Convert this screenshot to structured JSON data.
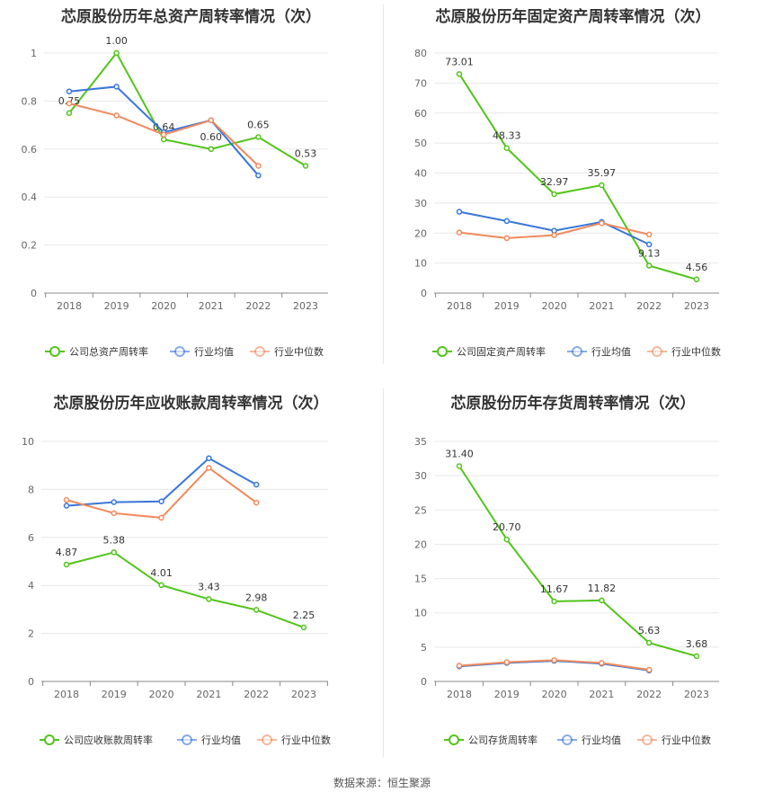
{
  "footer": "数据来源：恒生聚源",
  "chart_data": [
    {
      "type": "line",
      "title": "芯原股份历年总资产周转率情况（次）",
      "x": [
        "2018",
        "2019",
        "2020",
        "2021",
        "2022",
        "2023"
      ],
      "ylim": [
        0,
        1
      ],
      "yticks": [
        "0",
        "0.2",
        "0.4",
        "0.6",
        "0.8",
        "1"
      ],
      "ytick_values": [
        0,
        0.2,
        0.4,
        0.6,
        0.8,
        1
      ],
      "grid": true,
      "legend": "bottom",
      "series": [
        {
          "name": "公司总资产周转率",
          "color": "#52c41a",
          "values": [
            0.75,
            1.0,
            0.64,
            0.6,
            0.65,
            0.53
          ],
          "labels": [
            "0.75",
            "1.00",
            "0.64",
            "0.60",
            "0.65",
            "0.53"
          ]
        },
        {
          "name": "行业均值",
          "color": "#3a76d8",
          "values": [
            0.84,
            0.86,
            0.67,
            0.72,
            0.49,
            null
          ]
        },
        {
          "name": "行业中位数",
          "color": "#f08a5d",
          "values": [
            0.79,
            0.74,
            0.66,
            0.72,
            0.53,
            null
          ]
        }
      ]
    },
    {
      "type": "line",
      "title": "芯原股份历年固定资产周转率情况（次）",
      "x": [
        "2018",
        "2019",
        "2020",
        "2021",
        "2022",
        "2023"
      ],
      "ylim": [
        0,
        80
      ],
      "yticks": [
        "0",
        "10",
        "20",
        "30",
        "40",
        "50",
        "60",
        "70",
        "80"
      ],
      "ytick_values": [
        0,
        10,
        20,
        30,
        40,
        50,
        60,
        70,
        80
      ],
      "grid": true,
      "legend": "bottom",
      "series": [
        {
          "name": "公司固定资产周转率",
          "color": "#52c41a",
          "values": [
            73.01,
            48.33,
            32.97,
            35.97,
            9.13,
            4.56
          ],
          "labels": [
            "73.01",
            "48.33",
            "32.97",
            "35.97",
            "9.13",
            "4.56"
          ]
        },
        {
          "name": "行业均值",
          "color": "#3a76d8",
          "values": [
            27.1,
            24.0,
            20.8,
            23.7,
            16.2,
            null
          ]
        },
        {
          "name": "行业中位数",
          "color": "#f08a5d",
          "values": [
            20.2,
            18.3,
            19.3,
            23.3,
            19.5,
            null
          ]
        }
      ]
    },
    {
      "type": "line",
      "title": "芯原股份历年应收账款周转率情况（次）",
      "x": [
        "2018",
        "2019",
        "2020",
        "2021",
        "2022",
        "2023"
      ],
      "ylim": [
        0,
        10
      ],
      "yticks": [
        "0",
        "2",
        "4",
        "6",
        "8",
        "10"
      ],
      "ytick_values": [
        0,
        2,
        4,
        6,
        8,
        10
      ],
      "grid": true,
      "legend": "bottom",
      "series": [
        {
          "name": "公司应收账款周转率",
          "color": "#52c41a",
          "values": [
            4.87,
            5.38,
            4.01,
            3.43,
            2.98,
            2.25
          ],
          "labels": [
            "4.87",
            "5.38",
            "4.01",
            "3.43",
            "2.98",
            "2.25"
          ]
        },
        {
          "name": "行业均值",
          "color": "#3a76d8",
          "values": [
            7.32,
            7.47,
            7.5,
            9.3,
            8.2,
            null
          ]
        },
        {
          "name": "行业中位数",
          "color": "#f08a5d",
          "values": [
            7.56,
            7.01,
            6.82,
            8.9,
            7.45,
            null
          ]
        }
      ]
    },
    {
      "type": "line",
      "title": "芯原股份历年存货周转率情况（次）",
      "x": [
        "2018",
        "2019",
        "2020",
        "2021",
        "2022",
        "2023"
      ],
      "ylim": [
        0,
        35
      ],
      "yticks": [
        "0",
        "5",
        "10",
        "15",
        "20",
        "25",
        "30",
        "35"
      ],
      "ytick_values": [
        0,
        5,
        10,
        15,
        20,
        25,
        30,
        35
      ],
      "grid": true,
      "legend": "bottom",
      "series": [
        {
          "name": "公司存货周转率",
          "color": "#52c41a",
          "values": [
            31.4,
            20.7,
            11.67,
            11.82,
            5.63,
            3.68
          ],
          "labels": [
            "31.40",
            "20.70",
            "11.67",
            "11.82",
            "5.63",
            "3.68"
          ]
        },
        {
          "name": "行业均值",
          "color": "#3a76d8",
          "values": [
            2.2,
            2.7,
            3.0,
            2.6,
            1.6,
            null
          ]
        },
        {
          "name": "行业中位数",
          "color": "#f08a5d",
          "values": [
            2.3,
            2.8,
            3.1,
            2.7,
            1.7,
            null
          ]
        }
      ]
    }
  ]
}
